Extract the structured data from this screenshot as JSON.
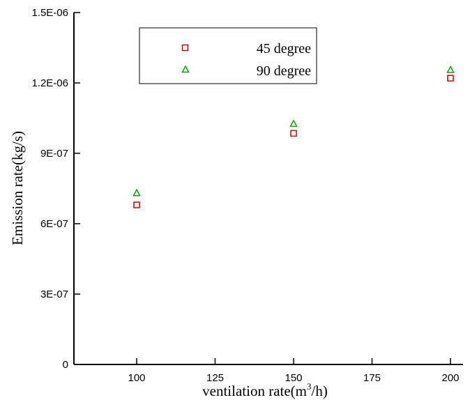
{
  "chart_data": {
    "type": "scatter",
    "title": "",
    "xlabel": "ventilation rate(m",
    "xlabel_sup": "3",
    "xlabel_suffix": "/h)",
    "ylabel": "Emission rate(kg/s)",
    "xlim": [
      80,
      204
    ],
    "ylim": [
      0,
      1.5e-06
    ],
    "xticks": [
      100,
      125,
      150,
      175,
      200
    ],
    "xtick_labels": [
      "100",
      "125",
      "150",
      "175",
      "200"
    ],
    "yticks": [
      0,
      3e-07,
      6e-07,
      9e-07,
      1.2e-06,
      1.5e-06
    ],
    "ytick_labels": [
      "0",
      "3E-07",
      "6E-07",
      "9E-07",
      "1.2E-06",
      "1.5E-06"
    ],
    "grid": false,
    "legend_position": "top-center",
    "series": [
      {
        "name": "45 degree",
        "marker": "square",
        "color": "#cc0000",
        "x": [
          100,
          150,
          200
        ],
        "y": [
          6.8e-07,
          9.85e-07,
          1.22e-06
        ]
      },
      {
        "name": "90 degree",
        "marker": "triangle",
        "color": "#00aa00",
        "x": [
          100,
          150,
          200
        ],
        "y": [
          7.3e-07,
          1.025e-06,
          1.255e-06
        ]
      }
    ]
  }
}
